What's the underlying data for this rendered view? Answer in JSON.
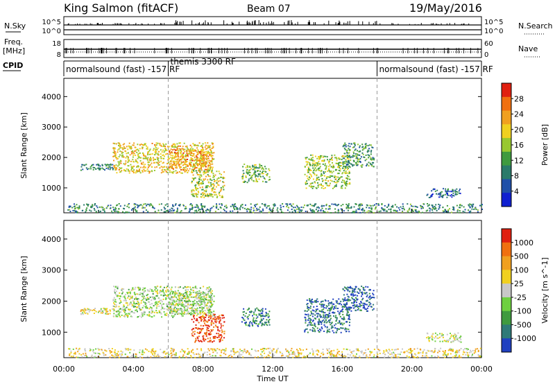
{
  "header": {
    "station": "King Salmon (fitACF)",
    "beam": "Beam 07",
    "date": "19/May/2016"
  },
  "top_panels": {
    "nsky_label": "N.Sky",
    "nsky_ticks": [
      "10^5",
      "10^0"
    ],
    "nsearch_label": "N.Search",
    "nsearch_ticks": [
      "10^5",
      "10^0"
    ],
    "freq_label_1": "Freq.",
    "freq_label_2": "[MHz]",
    "freq_ticks": [
      "18",
      "8"
    ],
    "nave_label": "Nave",
    "nave_ticks": [
      "60",
      "0"
    ],
    "cpid_label": "CPID",
    "cpid_segments": [
      {
        "label": "normalsound (fast) -157 RF",
        "start": 0,
        "end": 6
      },
      {
        "label": "themis 3300 RF",
        "start": 6,
        "end": 18
      },
      {
        "label": "normalsound (fast) -157 RF",
        "start": 18,
        "end": 24
      }
    ]
  },
  "chart_data": [
    {
      "type": "heatmap",
      "title": "Power",
      "ylabel": "Slant Range [km]",
      "xlabel": "Time UT",
      "xlim": [
        0,
        24
      ],
      "ylim": [
        180,
        4600
      ],
      "yticks": [
        1000,
        2000,
        3000,
        4000
      ],
      "xticks": [
        "00:00",
        "04:00",
        "08:00",
        "12:00",
        "16:00",
        "20:00",
        "00:00"
      ],
      "colorbar": {
        "label": "Power [dB]",
        "ticks": [
          "4",
          "8",
          "12",
          "16",
          "20",
          "24",
          "28"
        ],
        "colors": [
          "#1020d0",
          "#2050a8",
          "#2a7a6a",
          "#3f9a3f",
          "#98c830",
          "#f0d020",
          "#f0a020",
          "#f07010",
          "#e02010"
        ]
      },
      "regions": [
        {
          "t0": 2.8,
          "t1": 8.6,
          "r0": 1500,
          "r1": 2500,
          "level": 0.62
        },
        {
          "t0": 6.0,
          "t1": 8.5,
          "r0": 1600,
          "r1": 2300,
          "level": 0.75
        },
        {
          "t0": 7.3,
          "t1": 9.2,
          "r0": 700,
          "r1": 1600,
          "level": 0.55
        },
        {
          "t0": 0.9,
          "t1": 2.8,
          "r0": 1600,
          "r1": 1800,
          "level": 0.3
        },
        {
          "t0": 10.2,
          "t1": 11.8,
          "r0": 1200,
          "r1": 1800,
          "level": 0.45
        },
        {
          "t0": 13.8,
          "t1": 16.4,
          "r0": 1000,
          "r1": 2100,
          "level": 0.5
        },
        {
          "t0": 16.0,
          "t1": 17.8,
          "r0": 1700,
          "r1": 2500,
          "level": 0.35
        },
        {
          "t0": 0.2,
          "t1": 24.0,
          "r0": 200,
          "r1": 500,
          "level": 0.3
        },
        {
          "t0": 20.8,
          "t1": 22.8,
          "r0": 700,
          "r1": 1000,
          "level": 0.2
        }
      ]
    },
    {
      "type": "heatmap",
      "title": "Velocity",
      "ylabel": "Slant Range [km]",
      "xlabel": "Time UT",
      "xlim": [
        0,
        24
      ],
      "ylim": [
        180,
        4600
      ],
      "yticks": [
        1000,
        2000,
        3000,
        4000
      ],
      "xticks": [
        "00:00",
        "04:00",
        "08:00",
        "12:00",
        "16:00",
        "20:00",
        "00:00"
      ],
      "colorbar": {
        "label": "Velocity [m s^-1]",
        "ticks": [
          "1000",
          "500",
          "100",
          "25",
          "-25",
          "-100",
          "-500",
          "-1000"
        ],
        "colors": [
          "#2040c0",
          "#2f7a78",
          "#3f9a3f",
          "#6ed040",
          "#c8c8c8",
          "#f0d020",
          "#f0a020",
          "#f07010",
          "#e02010"
        ]
      },
      "regions": [
        {
          "t0": 2.8,
          "t1": 8.6,
          "r0": 1500,
          "r1": 2500,
          "level": 0.46
        },
        {
          "t0": 6.0,
          "t1": 8.5,
          "r0": 1600,
          "r1": 2300,
          "level": 0.46
        },
        {
          "t0": 7.3,
          "t1": 9.2,
          "r0": 700,
          "r1": 1600,
          "level": 0.92
        },
        {
          "t0": 0.9,
          "t1": 2.8,
          "r0": 1600,
          "r1": 1800,
          "level": 0.55
        },
        {
          "t0": 10.2,
          "t1": 11.8,
          "r0": 1200,
          "r1": 1800,
          "level": 0.2
        },
        {
          "t0": 13.8,
          "t1": 16.4,
          "r0": 1000,
          "r1": 2100,
          "level": 0.15
        },
        {
          "t0": 16.0,
          "t1": 17.8,
          "r0": 1700,
          "r1": 2500,
          "level": 0.1
        },
        {
          "t0": 0.2,
          "t1": 24.0,
          "r0": 200,
          "r1": 500,
          "level": 0.58
        },
        {
          "t0": 20.8,
          "t1": 22.8,
          "r0": 700,
          "r1": 1000,
          "level": 0.5
        }
      ]
    }
  ]
}
